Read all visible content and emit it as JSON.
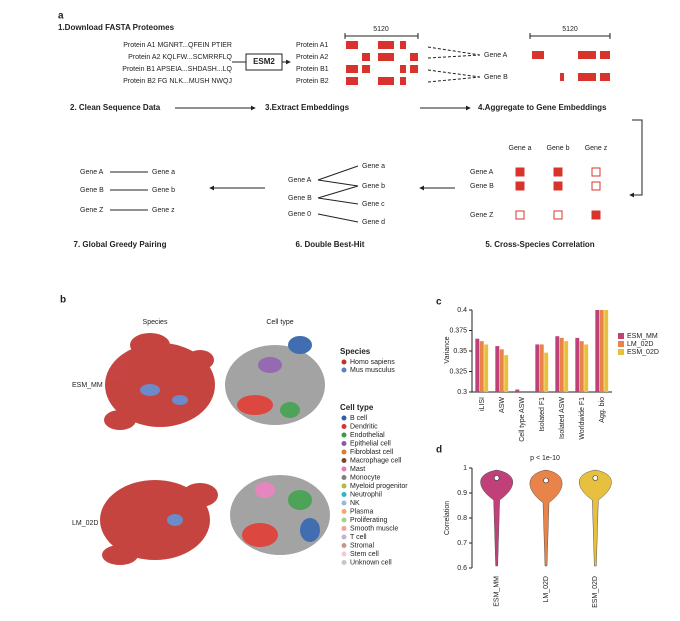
{
  "panel_a": {
    "label": "a",
    "steps": [
      "1.Download FASTA Proteomes",
      "2. Clean Sequence Data",
      "3.Extract Embeddings",
      "4.Aggregate to Gene Embeddings",
      "5. Cross-Species Correlation",
      "6. Double Best-Hit",
      "7. Global Greedy Pairing"
    ],
    "proteins": [
      "Protein A1 MGNRT...QFEIN PTIER",
      "Protein A2 KQLFW...SCMRRFLQ",
      "Protein B1 APSEIA...SHDASH...LQ",
      "Protein B2 FG NLK...MUSH NWQJ"
    ],
    "model": "ESM2",
    "embeddings": [
      "Protein A1",
      "Protein A2",
      "Protein B1",
      "Protein B2"
    ],
    "dim": "5120",
    "genes": [
      "Gene A",
      "Gene B"
    ],
    "gene_dim": "5120",
    "corr_cols": [
      "Gene a",
      "Gene b",
      "Gene z"
    ],
    "corr_rows": [
      "Gene A",
      "Gene B",
      "Gene Z"
    ],
    "dbh_left": [
      "Gene A",
      "Gene B",
      "Gene 0"
    ],
    "dbh_right": [
      "Gene a",
      "Gene b",
      "Gene c",
      "Gene d"
    ],
    "pairs_left": [
      "Gene A",
      "Gene B",
      "Gene Z"
    ],
    "pairs_right": [
      "Gene a",
      "Gene b",
      "Gene z"
    ]
  },
  "panel_b": {
    "label": "b",
    "columns": [
      "Species",
      "Cell type"
    ],
    "rows": [
      "ESM_MM",
      "LM_02D"
    ],
    "species_title": "Species",
    "species": [
      {
        "name": "Homo sapiens",
        "color": "#c0302c"
      },
      {
        "name": "Mus musculus",
        "color": "#5b7fc4"
      }
    ],
    "celltype_title": "Cell type",
    "celltypes": [
      {
        "name": "B cell",
        "color": "#2d5fa8"
      },
      {
        "name": "Dendritic",
        "color": "#d9342b"
      },
      {
        "name": "Endothelial",
        "color": "#3a9a45"
      },
      {
        "name": "Epithelial cell",
        "color": "#8a5aa8"
      },
      {
        "name": "Fibroblast cell",
        "color": "#e07b2a"
      },
      {
        "name": "Macrophage cell",
        "color": "#7a4a2a"
      },
      {
        "name": "Mast",
        "color": "#e37bb8"
      },
      {
        "name": "Monocyte",
        "color": "#808080"
      },
      {
        "name": "Myeloid progenitor",
        "color": "#b8b83a"
      },
      {
        "name": "Neutrophil",
        "color": "#2ab5c8"
      },
      {
        "name": "NK",
        "color": "#9bb6de"
      },
      {
        "name": "Plasma",
        "color": "#f2a86e"
      },
      {
        "name": "Proliferating",
        "color": "#9fd48a"
      },
      {
        "name": "Smooth muscle",
        "color": "#f0a0a0"
      },
      {
        "name": "T cell",
        "color": "#c7b0d6"
      },
      {
        "name": "Stromal",
        "color": "#c49a8a"
      },
      {
        "name": "Stem cell",
        "color": "#f5c6de"
      },
      {
        "name": "Unknown cell",
        "color": "#c8c8c8"
      }
    ]
  },
  "chart_data": [
    {
      "type": "bar",
      "label": "c",
      "ylabel": "Variance",
      "categories": [
        "iLISI",
        "ASW",
        "Cell type ASW",
        "Isolated F1",
        "Isolated ASW",
        "Worldwide F1",
        "Agg. bio"
      ],
      "series": [
        {
          "name": "ESM_MM",
          "color": "#c0407a",
          "values": [
            0.365,
            0.356,
            0.303,
            0.358,
            0.368,
            0.366,
            0.4
          ]
        },
        {
          "name": "LM_02D",
          "color": "#e8834a",
          "values": [
            0.362,
            0.352,
            null,
            0.358,
            0.366,
            0.362,
            0.4
          ]
        },
        {
          "name": "ESM_02D",
          "color": "#e8c040",
          "values": [
            0.358,
            0.345,
            null,
            0.348,
            0.362,
            0.358,
            0.4
          ]
        }
      ],
      "ylim": [
        0.3,
        0.4
      ],
      "yticks": [
        0.3,
        0.325,
        0.35,
        0.375,
        0.4
      ]
    },
    {
      "type": "violin",
      "label": "d",
      "title": "p < 1e-10",
      "ylabel": "Correlation",
      "series": [
        {
          "name": "ESM_MM",
          "color": "#c0407a",
          "median": 0.96
        },
        {
          "name": "LM_02D",
          "color": "#e8834a",
          "median": 0.95
        },
        {
          "name": "ESM_02D",
          "color": "#e8c040",
          "median": 0.96
        }
      ],
      "ylim": [
        0.6,
        1.0
      ],
      "yticks": [
        0.6,
        0.7,
        0.8,
        0.9,
        1.0
      ]
    }
  ]
}
